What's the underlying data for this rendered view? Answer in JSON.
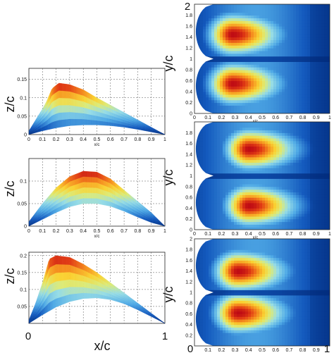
{
  "chart_data": [
    {
      "type": "area",
      "panel": "profile-top",
      "ylabel": "z/c",
      "xlabel": "x/c",
      "xlim": [
        0,
        1
      ],
      "ylim": [
        0,
        0.18
      ],
      "x_ticks": [
        "0",
        "0.1",
        "0.2",
        "0.3",
        "0.4",
        "0.5",
        "0.6",
        "0.7",
        "0.8",
        "0.9",
        "1"
      ],
      "y_ticks": [
        "0",
        "0.05",
        "0.1",
        "0.15"
      ],
      "upper_x": [
        0.0,
        0.05,
        0.1,
        0.13,
        0.17,
        0.22,
        0.3,
        0.4,
        0.5,
        0.6,
        0.7,
        0.8,
        0.9,
        1.0
      ],
      "upper_z": [
        0.01,
        0.04,
        0.07,
        0.09,
        0.125,
        0.14,
        0.136,
        0.122,
        0.1,
        0.08,
        0.06,
        0.04,
        0.02,
        0.0
      ],
      "lower_x": [
        0.0,
        0.1,
        0.2,
        0.3,
        0.4,
        0.5,
        0.6,
        0.7,
        0.8,
        0.9,
        1.0
      ],
      "lower_z": [
        0.0,
        0.01,
        0.018,
        0.024,
        0.026,
        0.026,
        0.024,
        0.02,
        0.014,
        0.007,
        0.0
      ]
    },
    {
      "type": "area",
      "panel": "profile-middle",
      "ylabel": "z/c",
      "xlabel": "x/c",
      "xlim": [
        0,
        1
      ],
      "ylim": [
        0,
        0.15
      ],
      "x_ticks": [
        "0",
        "0.1",
        "0.2",
        "0.3",
        "0.4",
        "0.5",
        "0.6",
        "0.7",
        "0.8",
        "0.9",
        "1"
      ],
      "y_ticks": [
        "0",
        "0.05",
        "0.1"
      ],
      "upper_x": [
        0.0,
        0.1,
        0.2,
        0.3,
        0.4,
        0.5,
        0.6,
        0.7,
        0.8,
        0.9,
        1.0
      ],
      "upper_z": [
        0.01,
        0.05,
        0.085,
        0.11,
        0.122,
        0.12,
        0.105,
        0.08,
        0.055,
        0.03,
        0.0
      ],
      "lower_x": [
        0.0,
        0.1,
        0.2,
        0.3,
        0.4,
        0.5,
        0.6,
        0.7,
        0.8,
        0.9,
        1.0
      ],
      "lower_z": [
        0.0,
        0.015,
        0.03,
        0.043,
        0.05,
        0.05,
        0.044,
        0.033,
        0.02,
        0.008,
        0.0
      ]
    },
    {
      "type": "area",
      "panel": "profile-bottom",
      "ylabel": "z/c",
      "xlabel": "x/c",
      "xlabel_ends": [
        "0",
        "1"
      ],
      "xlim": [
        0,
        1
      ],
      "ylim": [
        0,
        0.21
      ],
      "y_ticks": [
        "0.05",
        "0.1",
        "0.15",
        "0.2"
      ],
      "upper_x": [
        0.0,
        0.05,
        0.1,
        0.15,
        0.2,
        0.3,
        0.4,
        0.5,
        0.6,
        0.7,
        0.8,
        0.9,
        1.0
      ],
      "upper_z": [
        0.01,
        0.06,
        0.12,
        0.19,
        0.2,
        0.195,
        0.175,
        0.15,
        0.12,
        0.09,
        0.06,
        0.03,
        0.0
      ],
      "lower_x": [
        0.0,
        0.1,
        0.2,
        0.3,
        0.4,
        0.5,
        0.6,
        0.7,
        0.8,
        0.9,
        1.0
      ],
      "lower_z": [
        0.0,
        0.025,
        0.048,
        0.064,
        0.073,
        0.075,
        0.07,
        0.058,
        0.04,
        0.02,
        0.0
      ]
    },
    {
      "type": "heatmap",
      "panel": "map-top",
      "ylabel": "y/c",
      "ylabel_top": "2",
      "xlim": [
        0,
        1
      ],
      "ylim": [
        0,
        2
      ],
      "x_ticks": [
        "0",
        "0.1",
        "0.2",
        "0.3",
        "0.4",
        "0.5",
        "0.6",
        "0.7",
        "0.8",
        "0.9",
        "1"
      ],
      "y_ticks": [
        "0",
        "0.2",
        "0.4",
        "0.6",
        "0.8",
        "1",
        "1.2",
        "1.4",
        "1.6",
        "1.8"
      ],
      "x_label_small": "x/c",
      "cores": [
        {
          "x": 0.28,
          "y": 1.45
        },
        {
          "x": 0.28,
          "y": 0.55
        }
      ],
      "peak_x": 0.28
    },
    {
      "type": "heatmap",
      "panel": "map-middle",
      "ylabel": "y/c",
      "xlim": [
        0,
        1
      ],
      "ylim": [
        0,
        2
      ],
      "x_ticks": [
        "0",
        "0.1",
        "0.2",
        "0.3",
        "0.4",
        "0.5",
        "0.6",
        "0.7",
        "0.8",
        "0.9",
        "1"
      ],
      "y_ticks": [
        "0",
        "0.2",
        "0.4",
        "0.6",
        "0.8",
        "1",
        "1.2",
        "1.4",
        "1.6",
        "1.8"
      ],
      "x_label_small": "x/c",
      "cores": [
        {
          "x": 0.4,
          "y": 1.5
        },
        {
          "x": 0.4,
          "y": 0.45
        }
      ],
      "peak_x": 0.4
    },
    {
      "type": "heatmap",
      "panel": "map-bottom",
      "ylabel": "y/c",
      "xlabel_ends": [
        "0",
        "1"
      ],
      "xlim": [
        0,
        1
      ],
      "ylim": [
        0,
        2
      ],
      "x_ticks": [
        "0.1",
        "0.2",
        "0.3",
        "0.4",
        "0.5",
        "0.6",
        "0.7",
        "0.8",
        "0.9"
      ],
      "y_ticks": [
        "0.2",
        "0.4",
        "0.6",
        "0.8",
        "1",
        "1.2",
        "1.4",
        "1.6",
        "1.8",
        "2"
      ],
      "cores": [
        {
          "x": 0.32,
          "y": 1.4
        },
        {
          "x": 0.32,
          "y": 0.62
        }
      ],
      "peak_x": 0.32
    }
  ]
}
